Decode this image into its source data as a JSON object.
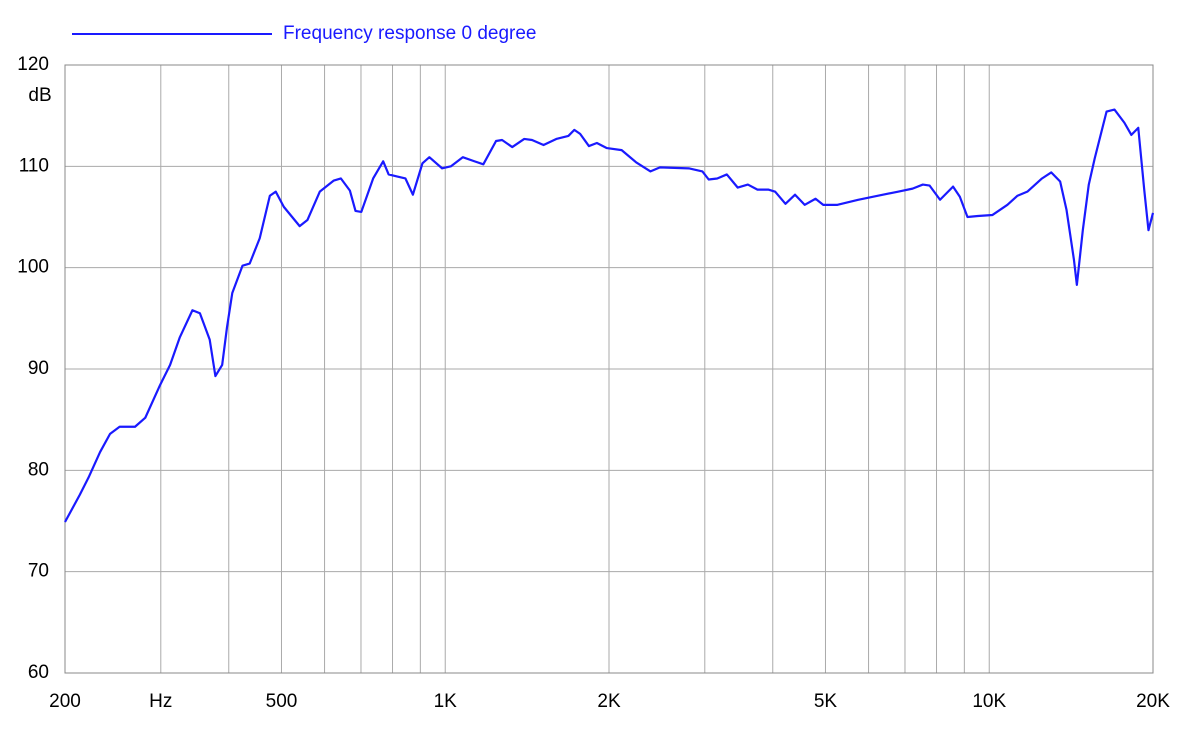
{
  "chart_data": {
    "type": "line",
    "log_x": true,
    "xlim": [
      200,
      20000
    ],
    "ylim": [
      60,
      120
    ],
    "xticks": [
      200,
      {
        "value": 300,
        "label": "Hz"
      },
      500,
      {
        "value": 1000,
        "label": "1K"
      },
      {
        "value": 2000,
        "label": "2K"
      },
      {
        "value": 5000,
        "label": "5K"
      },
      {
        "value": 10000,
        "label": "10K"
      },
      {
        "value": 20000,
        "label": "20K"
      }
    ],
    "xgrid": [
      300,
      400,
      500,
      600,
      700,
      800,
      900,
      1000,
      2000,
      3000,
      4000,
      5000,
      6000,
      7000,
      8000,
      9000,
      10000
    ],
    "yticks": [
      60,
      70,
      80,
      90,
      100,
      110,
      120
    ],
    "ylabel": "dB",
    "grid": true,
    "series": [
      {
        "name": "Frequency response 0 degree",
        "color": "#1a1aff",
        "x": [
          200,
          213,
          221,
          232,
          242,
          252,
          269,
          281,
          299,
          312,
          325,
          343,
          354,
          369,
          378,
          389,
          397,
          406,
          424,
          437,
          456,
          476,
          488,
          505,
          540,
          558,
          588,
          624,
          643,
          668,
          684,
          701,
          737,
          769,
          787,
          815,
          845,
          872,
          908,
          935,
          987,
          1024,
          1077,
          1131,
          1175,
          1240,
          1272,
          1328,
          1397,
          1444,
          1516,
          1600,
          1684,
          1727,
          1770,
          1837,
          1900,
          1982,
          2110,
          2243,
          2384,
          2481,
          2803,
          2970,
          3050,
          3162,
          3293,
          3449,
          3600,
          3749,
          3931,
          4041,
          4221,
          4396,
          4580,
          4794,
          4953,
          5260,
          5741,
          6248,
          6798,
          7230,
          7550,
          7770,
          8120,
          8580,
          8830,
          9120,
          9530,
          10140,
          10800,
          11270,
          11750,
          12500,
          13000,
          13500,
          13870,
          14310,
          14490,
          14860,
          15240,
          15630,
          16430,
          16990,
          17720,
          18250,
          18790,
          19270,
          19620,
          20000
        ],
        "values": [
          74.9,
          77.6,
          79.3,
          81.8,
          83.6,
          84.3,
          84.3,
          85.2,
          88.4,
          90.4,
          93.1,
          95.8,
          95.5,
          92.9,
          89.3,
          90.4,
          94.1,
          97.5,
          100.2,
          100.4,
          102.9,
          107.1,
          107.5,
          106.0,
          104.1,
          104.7,
          107.5,
          108.6,
          108.8,
          107.6,
          105.6,
          105.5,
          108.8,
          110.5,
          109.2,
          109.0,
          108.8,
          107.2,
          110.3,
          110.9,
          109.8,
          110.0,
          110.9,
          110.5,
          110.2,
          112.5,
          112.6,
          111.9,
          112.7,
          112.6,
          112.1,
          112.7,
          113.0,
          113.6,
          113.2,
          112.0,
          112.3,
          111.8,
          111.6,
          110.4,
          109.5,
          109.9,
          109.8,
          109.5,
          108.7,
          108.8,
          109.2,
          107.9,
          108.2,
          107.7,
          107.7,
          107.5,
          106.3,
          107.2,
          106.2,
          106.8,
          106.2,
          106.2,
          106.7,
          107.1,
          107.5,
          107.8,
          108.2,
          108.1,
          106.7,
          108.0,
          107.0,
          105.0,
          105.1,
          105.2,
          106.2,
          107.1,
          107.5,
          108.8,
          109.4,
          108.5,
          105.7,
          100.8,
          98.3,
          103.7,
          108.2,
          110.8,
          115.4,
          115.6,
          114.3,
          113.1,
          113.8,
          107.7,
          103.7,
          105.4
        ]
      }
    ]
  }
}
